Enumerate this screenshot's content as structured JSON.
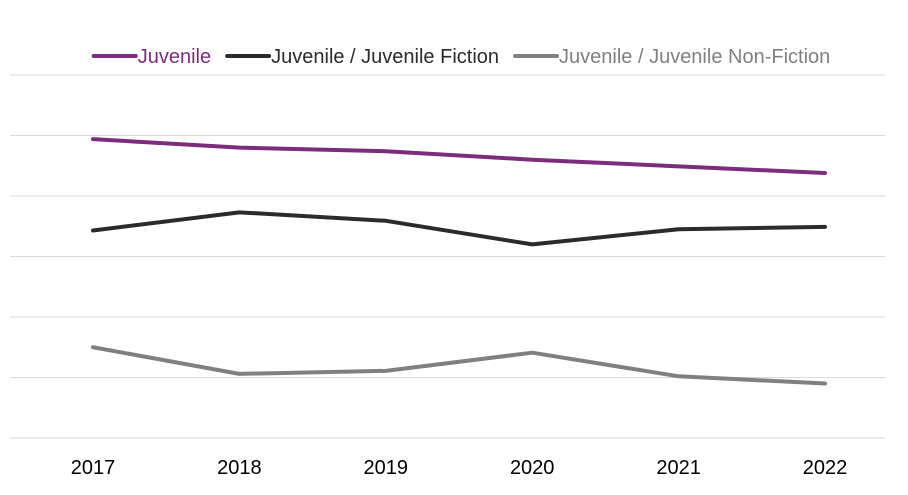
{
  "chart_data": {
    "type": "line",
    "title": "",
    "xlabel": "",
    "ylabel": "",
    "categories": [
      "2017",
      "2018",
      "2019",
      "2020",
      "2021",
      "2022"
    ],
    "ylim": [
      0,
      6
    ],
    "grid": true,
    "legend_position": "top",
    "series": [
      {
        "name": "Juvenile",
        "color": "#7b2c7d",
        "values": [
          4.94,
          4.8,
          4.74,
          4.6,
          4.49,
          4.38
        ]
      },
      {
        "name": "Juvenile / Juvenile Fiction",
        "color": "#2b2b2b",
        "values": [
          3.43,
          3.73,
          3.59,
          3.2,
          3.45,
          3.49
        ]
      },
      {
        "name": "Juvenile / Juvenile Non-Fiction",
        "color": "#808080",
        "values": [
          1.5,
          1.06,
          1.11,
          1.41,
          1.02,
          0.9
        ]
      }
    ]
  }
}
